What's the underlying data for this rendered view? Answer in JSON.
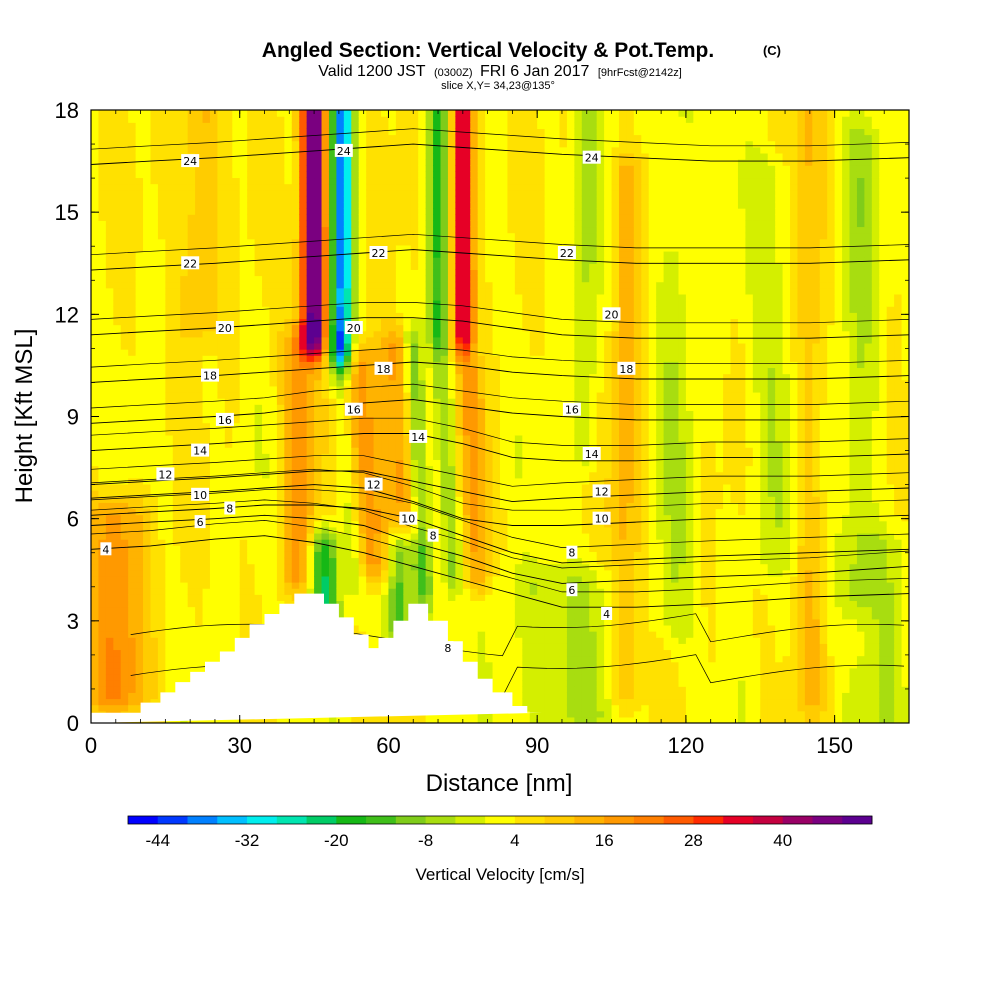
{
  "chart_data": {
    "type": "heatmap",
    "title": "Angled Section: Vertical Velocity & Pot.Temp.",
    "title_mark": "(C)",
    "subtitle_valid": "Valid 1200 JST",
    "subtitle_utc": "(0300Z)",
    "subtitle_date": "FRI 6 Jan 2017",
    "subtitle_fcst": "[9hrFcst@2142z]",
    "slice_label": "slice X,Y= 34,23@135°",
    "xlabel": "Distance [nm]",
    "ylabel": "Height [Kft MSL]",
    "xlim": [
      0,
      165
    ],
    "ylim": [
      0,
      18
    ],
    "x_ticks": [
      0,
      30,
      60,
      90,
      120,
      150
    ],
    "x_tick_labels": [
      "0",
      "30",
      "60",
      "90",
      "120",
      "150"
    ],
    "y_ticks": [
      0,
      3,
      6,
      9,
      12,
      15,
      18
    ],
    "y_tick_labels": [
      "0",
      "3",
      "6",
      "9",
      "12",
      "15",
      "18"
    ],
    "colorbar": {
      "title": "Vertical Velocity [cm/s]",
      "min": -48,
      "max": 52,
      "step": 4,
      "tick_values": [
        -44,
        -32,
        -20,
        -8,
        4,
        16,
        28,
        40
      ],
      "tick_labels": [
        "-44",
        "-32",
        "-20",
        "-8",
        "4",
        "16",
        "28",
        "40"
      ],
      "colors": [
        "#0000ff",
        "#0038ff",
        "#0080ff",
        "#00bfff",
        "#00eeee",
        "#00e5b0",
        "#00cc66",
        "#16b816",
        "#3fbf1a",
        "#7fcc1a",
        "#a8dd10",
        "#d4ef00",
        "#ffff00",
        "#ffe100",
        "#ffcc00",
        "#ffb300",
        "#ff9900",
        "#ff7f00",
        "#ff5a00",
        "#ff2a00",
        "#e60026",
        "#c4003f",
        "#990066",
        "#7a0080",
        "#5c0090"
      ]
    },
    "terrain": {
      "x": [
        0,
        10,
        10,
        14,
        14,
        17,
        17,
        20,
        20,
        23,
        23,
        26,
        26,
        29,
        29,
        32,
        32,
        35,
        35,
        38,
        38,
        41,
        41,
        43,
        43,
        47,
        47,
        50,
        50,
        53,
        53,
        56,
        56,
        58,
        58,
        61,
        61,
        64,
        64,
        66,
        66,
        68,
        68,
        72,
        72,
        75,
        75,
        78,
        78,
        81,
        81,
        85,
        85,
        88,
        88,
        91,
        91,
        165
      ],
      "y": [
        0.3,
        0.3,
        0.6,
        0.6,
        0.9,
        0.9,
        1.2,
        1.2,
        1.5,
        1.5,
        1.8,
        1.8,
        2.1,
        2.1,
        2.5,
        2.5,
        2.9,
        2.9,
        3.2,
        3.2,
        3.5,
        3.5,
        3.8,
        3.8,
        3.8,
        3.8,
        3.5,
        3.5,
        3.1,
        3.1,
        2.6,
        2.6,
        2.2,
        2.2,
        2.5,
        2.5,
        3.0,
        3.0,
        3.5,
        3.5,
        3.5,
        3.5,
        3.0,
        3.0,
        2.4,
        2.4,
        1.8,
        1.8,
        1.3,
        1.3,
        0.9,
        0.9,
        0.5,
        0.5,
        0.3,
        0.3,
        0.3
      ]
    },
    "velocity_features": [
      {
        "x": 45,
        "z0": 11.5,
        "z1": 18,
        "w": 2.6,
        "v": 48,
        "tilt": 0
      },
      {
        "x": 50.5,
        "z0": 11,
        "z1": 18,
        "w": 2.3,
        "v": -40,
        "tilt": 0
      },
      {
        "x": 42,
        "z0": 4.5,
        "z1": 11,
        "w": 3.5,
        "v": 14,
        "tilt": 0
      },
      {
        "x": 57,
        "z0": 4.8,
        "z1": 10.5,
        "w": 5,
        "v": 16,
        "tilt": -0.6
      },
      {
        "x": 53,
        "z0": 4.5,
        "z1": 11,
        "w": 2.2,
        "v": -14,
        "tilt": -0.5
      },
      {
        "x": 64,
        "z0": 6,
        "z1": 11,
        "w": 3.2,
        "v": 14,
        "tilt": -0.4
      },
      {
        "x": 70,
        "z0": 12,
        "z1": 18,
        "w": 2.2,
        "v": -20,
        "tilt": 0
      },
      {
        "x": 67,
        "z0": 4,
        "z1": 11,
        "w": 2,
        "v": -16,
        "tilt": -0.3
      },
      {
        "x": 75,
        "z0": 11.5,
        "z1": 18,
        "w": 2.2,
        "v": 36,
        "tilt": 0
      },
      {
        "x": 73,
        "z0": 4.5,
        "z1": 11,
        "w": 2,
        "v": -14,
        "tilt": -0.4
      },
      {
        "x": 78,
        "z0": 4.5,
        "z1": 10,
        "w": 2.5,
        "v": 14,
        "tilt": -0.3
      },
      {
        "x": 47,
        "z0": 3,
        "z1": 5,
        "w": 3,
        "v": -24,
        "tilt": 0
      },
      {
        "x": 62,
        "z0": 3,
        "z1": 5,
        "w": 2.5,
        "v": -20,
        "tilt": 0
      },
      {
        "x": 5,
        "z0": 1,
        "z1": 6,
        "w": 6,
        "v": 16,
        "tilt": 0
      },
      {
        "x": 22,
        "z0": 12,
        "z1": 18,
        "w": 4,
        "v": 10,
        "tilt": 0
      },
      {
        "x": 100,
        "z0": 8,
        "z1": 18,
        "w": 2.5,
        "v": -8,
        "tilt": 0
      },
      {
        "x": 108,
        "z0": 1,
        "z1": 16,
        "w": 3,
        "v": 10,
        "tilt": 0
      },
      {
        "x": 118,
        "z0": 3,
        "z1": 18,
        "w": 4,
        "v": -6,
        "tilt": 0
      },
      {
        "x": 137,
        "z0": 5,
        "z1": 16,
        "w": 5,
        "v": -6,
        "tilt": 0
      },
      {
        "x": 155,
        "z0": 4,
        "z1": 17,
        "w": 4,
        "v": -8,
        "tilt": 0
      },
      {
        "x": 145,
        "z0": 1,
        "z1": 18,
        "w": 3,
        "v": 8,
        "tilt": 0
      },
      {
        "x": 95,
        "z0": 0.3,
        "z1": 4,
        "w": 12,
        "v": -8,
        "tilt": 0
      },
      {
        "x": 160,
        "z0": 0.3,
        "z1": 5,
        "w": 6,
        "v": -6,
        "tilt": 0
      }
    ],
    "isentropes": [
      {
        "theta": 4,
        "z": [
          5.1,
          5.2,
          5.4,
          5.5,
          5.3,
          5.0,
          4.6,
          4.2,
          3.8,
          3.4,
          3.4,
          3.5,
          3.7,
          3.8
        ],
        "label_x": 107,
        "label_z": 3.2,
        "extra_label_x": 4,
        "extra_label_z": 5.1
      },
      {
        "theta": 6,
        "z": [
          5.8,
          5.9,
          6.0,
          6.1,
          6.0,
          5.8,
          5.3,
          4.9,
          4.4,
          4.1,
          4.2,
          4.3,
          4.4,
          4.6
        ],
        "label_x": 22,
        "label_z": 5.9,
        "extra_label_x": 108,
        "extra_label_z": 3.8
      },
      {
        "theta": 8,
        "z": [
          6.1,
          6.2,
          6.3,
          6.4,
          6.4,
          6.3,
          6.0,
          5.5,
          5.0,
          4.7,
          4.8,
          4.9,
          5.0,
          5.1
        ],
        "label_x": 28,
        "label_z": 6.3,
        "extra_label_x": 108,
        "extra_label_z": 5.0
      },
      {
        "theta": 10,
        "z": [
          6.6,
          6.7,
          6.8,
          6.9,
          7.0,
          6.9,
          6.5,
          6.0,
          5.8,
          5.8,
          5.9,
          6.0,
          6.0,
          6.1
        ],
        "label_x": 22,
        "label_z": 6.7,
        "extra_label_x": 64,
        "extra_label_z": 6.0
      },
      {
        "theta": 12,
        "z": [
          7.0,
          7.1,
          7.2,
          7.3,
          7.4,
          7.4,
          7.1,
          6.8,
          6.5,
          6.6,
          6.7,
          6.8,
          6.8,
          6.9
        ],
        "label_x": 15,
        "label_z": 7.3,
        "extra_label_x": 57,
        "extra_label_z": 7.0
      },
      {
        "theta": 14,
        "z": [
          8.0,
          8.1,
          8.2,
          8.3,
          8.4,
          8.5,
          8.5,
          8.2,
          7.8,
          7.7,
          7.7,
          7.8,
          7.8,
          7.9
        ],
        "label_x": 22,
        "label_z": 8.0,
        "extra_label_x": 66,
        "extra_label_z": 8.4
      },
      {
        "theta": 16,
        "z": [
          8.8,
          8.9,
          9.0,
          9.1,
          9.3,
          9.4,
          9.5,
          9.3,
          9.1,
          9.0,
          8.9,
          8.9,
          8.9,
          9.0
        ],
        "label_x": 27,
        "label_z": 8.9,
        "extra_label_x": 53,
        "extra_label_z": 9.2
      },
      {
        "theta": 18,
        "z": [
          10.0,
          10.1,
          10.2,
          10.3,
          10.4,
          10.5,
          10.6,
          10.5,
          10.3,
          10.2,
          10.1,
          10.1,
          10.1,
          10.2
        ],
        "label_x": 24,
        "label_z": 10.2,
        "extra_label_x": 59,
        "extra_label_z": 10.4
      },
      {
        "theta": 20,
        "z": [
          11.4,
          11.5,
          11.6,
          11.7,
          11.8,
          11.9,
          11.9,
          11.8,
          11.6,
          11.4,
          11.3,
          11.3,
          11.3,
          11.4
        ],
        "label_x": 27,
        "label_z": 11.6,
        "extra_label_x": 53,
        "extra_label_z": 11.6
      },
      {
        "theta": 22,
        "z": [
          13.3,
          13.4,
          13.5,
          13.6,
          13.7,
          13.8,
          13.9,
          13.8,
          13.7,
          13.6,
          13.5,
          13.5,
          13.5,
          13.6
        ],
        "label_x": 20,
        "label_z": 13.5,
        "extra_label_x": 58,
        "extra_label_z": 13.8
      },
      {
        "theta": 24,
        "z": [
          16.4,
          16.5,
          16.6,
          16.7,
          16.8,
          16.9,
          17.0,
          16.9,
          16.8,
          16.7,
          16.6,
          16.5,
          16.5,
          16.6
        ],
        "label_x": 20,
        "label_z": 16.5,
        "extra_label_x": 51,
        "extra_label_z": 16.8
      }
    ],
    "isentrope_x": [
      0,
      12,
      25,
      35,
      45,
      55,
      65,
      75,
      85,
      95,
      110,
      125,
      145,
      165
    ],
    "contour_labels": [
      {
        "text": "24",
        "x": 20,
        "z": 16.5
      },
      {
        "text": "24",
        "x": 51,
        "z": 16.8
      },
      {
        "text": "24",
        "x": 101,
        "z": 16.6
      },
      {
        "text": "22",
        "x": 20,
        "z": 13.5
      },
      {
        "text": "22",
        "x": 58,
        "z": 13.8
      },
      {
        "text": "22",
        "x": 96,
        "z": 13.8
      },
      {
        "text": "20",
        "x": 27,
        "z": 11.6
      },
      {
        "text": "20",
        "x": 53,
        "z": 11.6
      },
      {
        "text": "20",
        "x": 105,
        "z": 12.0
      },
      {
        "text": "18",
        "x": 24,
        "z": 10.2
      },
      {
        "text": "18",
        "x": 59,
        "z": 10.4
      },
      {
        "text": "18",
        "x": 108,
        "z": 10.4
      },
      {
        "text": "16",
        "x": 27,
        "z": 8.9
      },
      {
        "text": "16",
        "x": 53,
        "z": 9.2
      },
      {
        "text": "16",
        "x": 97,
        "z": 9.2
      },
      {
        "text": "14",
        "x": 22,
        "z": 8.0
      },
      {
        "text": "14",
        "x": 66,
        "z": 8.4
      },
      {
        "text": "14",
        "x": 101,
        "z": 7.9
      },
      {
        "text": "12",
        "x": 15,
        "z": 7.3
      },
      {
        "text": "12",
        "x": 57,
        "z": 7.0
      },
      {
        "text": "12",
        "x": 103,
        "z": 6.8
      },
      {
        "text": "10",
        "x": 22,
        "z": 6.7
      },
      {
        "text": "10",
        "x": 64,
        "z": 6.0
      },
      {
        "text": "10",
        "x": 103,
        "z": 6.0
      },
      {
        "text": "8",
        "x": 28,
        "z": 6.3
      },
      {
        "text": "8",
        "x": 69,
        "z": 5.5
      },
      {
        "text": "8",
        "x": 97,
        "z": 5.0
      },
      {
        "text": "8",
        "x": 72,
        "z": 2.2
      },
      {
        "text": "6",
        "x": 22,
        "z": 5.9
      },
      {
        "text": "6",
        "x": 97,
        "z": 3.9
      },
      {
        "text": "4",
        "x": 3,
        "z": 5.1
      },
      {
        "text": "4",
        "x": 104,
        "z": 3.2
      }
    ]
  }
}
